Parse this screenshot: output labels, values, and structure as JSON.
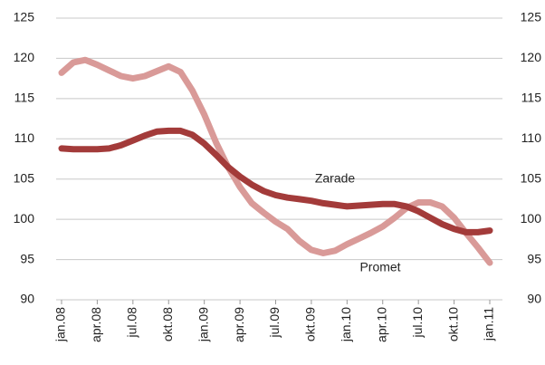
{
  "chart_data": {
    "type": "line",
    "categories": [
      "jan.08",
      null,
      null,
      "apr.08",
      null,
      null,
      "jul.08",
      null,
      null,
      "okt.08",
      null,
      null,
      "jan.09",
      null,
      null,
      "apr.09",
      null,
      null,
      "jul.09",
      null,
      null,
      "okt.09",
      null,
      null,
      "jan.10",
      null,
      null,
      "apr.10",
      null,
      null,
      "jul.10",
      null,
      null,
      "okt.10",
      null,
      null,
      "jan.11"
    ],
    "series": [
      {
        "name": "Promet",
        "color": "#d99a98",
        "values": [
          118.2,
          119.5,
          119.8,
          119.2,
          118.5,
          117.8,
          117.5,
          117.8,
          118.4,
          119,
          118.3,
          116,
          113,
          109.5,
          106.5,
          104,
          102,
          100.8,
          99.7,
          98.8,
          97.3,
          96.2,
          95.8,
          96.1,
          96.9,
          97.6,
          98.3,
          99.1,
          100.2,
          101.4,
          102.1,
          102.1,
          101.6,
          100.2,
          98.3,
          96.5,
          94.6
        ]
      },
      {
        "name": "Zarade",
        "color": "#a33b3a",
        "values": [
          108.8,
          108.7,
          108.7,
          108.7,
          108.8,
          109.2,
          109.8,
          110.4,
          110.9,
          111,
          111,
          110.5,
          109.4,
          108,
          106.5,
          105.3,
          104.3,
          103.5,
          103,
          102.7,
          102.5,
          102.3,
          102,
          101.8,
          101.6,
          101.7,
          101.8,
          101.9,
          101.9,
          101.6,
          101,
          100.2,
          99.4,
          98.8,
          98.4,
          98.4,
          98.6
        ]
      }
    ],
    "ylim": [
      90,
      125
    ],
    "yticks": [
      90,
      95,
      100,
      105,
      110,
      115,
      120,
      125
    ],
    "y2lim": [
      90,
      125
    ],
    "y2ticks": [
      90,
      95,
      100,
      105,
      110,
      115,
      120,
      125
    ],
    "grid": true
  }
}
